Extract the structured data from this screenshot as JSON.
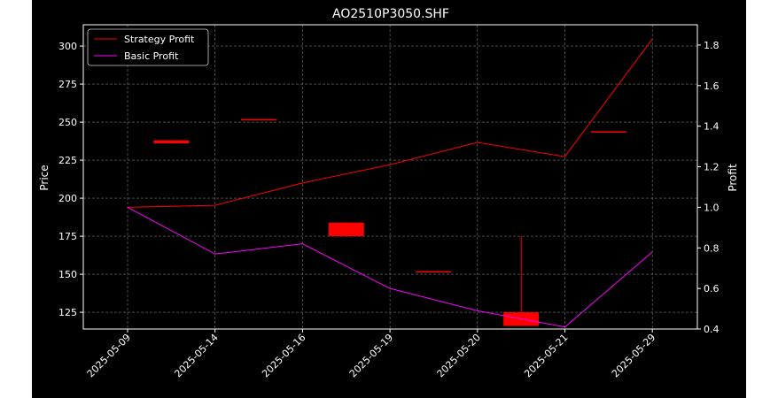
{
  "chart_data": {
    "type": "line",
    "title": "AO2510P3050.SHF",
    "ylabel": "Price",
    "y2label": "Profit",
    "categories": [
      "2025-05-09",
      "2025-05-14",
      "2025-05-16",
      "2025-05-19",
      "2025-05-20",
      "2025-05-21",
      "2025-05-29"
    ],
    "ylim": [
      114,
      314
    ],
    "y2lim": [
      0.4,
      1.9
    ],
    "yticks": [
      125,
      150,
      175,
      200,
      225,
      250,
      275,
      300
    ],
    "y2ticks": [
      0.4,
      0.6,
      0.8,
      1.0,
      1.2,
      1.4,
      1.6,
      1.8
    ],
    "grid": true,
    "legend_position": "top-left",
    "candles": [
      {
        "x": 1,
        "open": 236,
        "close": 238,
        "high": 238,
        "low": 236
      },
      {
        "x": 2,
        "open": 252,
        "close": 252,
        "high": 252,
        "low": 252
      },
      {
        "x": 3,
        "open": 184,
        "close": 175,
        "high": 184,
        "low": 175
      },
      {
        "x": 4,
        "open": 152,
        "close": 152,
        "high": 152,
        "low": 152
      },
      {
        "x": 5,
        "open": 125,
        "close": 116,
        "high": 175,
        "low": 116
      },
      {
        "x": 6,
        "open": 244,
        "close": 244,
        "high": 244,
        "low": 244
      }
    ],
    "series": [
      {
        "name": "Strategy Profit",
        "axis": "right",
        "color": "#ff0000",
        "values": [
          1.0,
          1.01,
          1.12,
          1.21,
          1.32,
          1.25,
          1.83
        ]
      },
      {
        "name": "Basic Profit",
        "axis": "right",
        "color": "#ff00ff",
        "values": [
          1.0,
          0.77,
          0.82,
          0.6,
          0.49,
          0.41,
          0.78
        ]
      }
    ],
    "candle_color": "#ff0000"
  }
}
